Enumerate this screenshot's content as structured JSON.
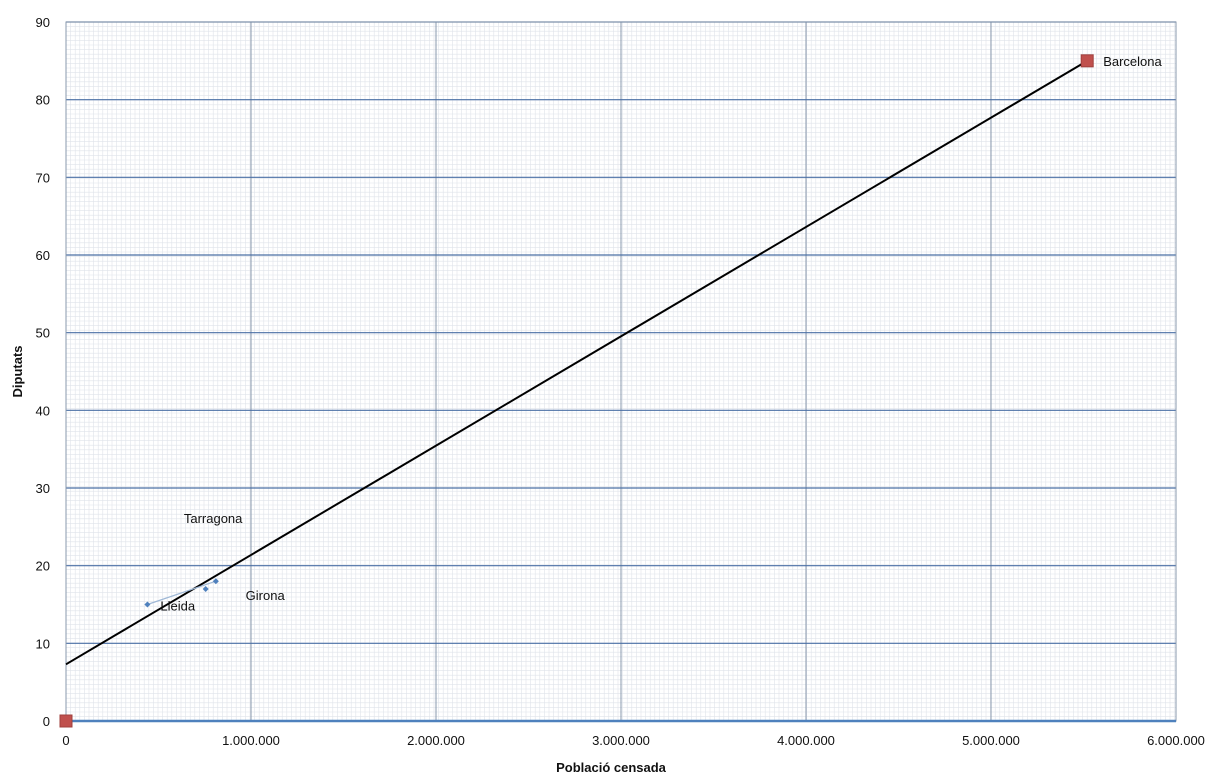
{
  "chart_data": {
    "type": "scatter",
    "title": "",
    "xlabel": "Població censada",
    "ylabel": "Diputats",
    "xlim": [
      0,
      6000000
    ],
    "ylim": [
      0,
      90
    ],
    "x_ticks": [
      0,
      1000000,
      2000000,
      3000000,
      4000000,
      5000000,
      6000000
    ],
    "x_tick_labels": [
      "0",
      "1.000.000",
      "2.000.000",
      "3.000.000",
      "4.000.000",
      "5.000.000",
      "6.000.000"
    ],
    "y_ticks": [
      0,
      10,
      20,
      30,
      40,
      50,
      60,
      70,
      80,
      90
    ],
    "y_tick_labels": [
      "0",
      "10",
      "20",
      "30",
      "40",
      "50",
      "60",
      "70",
      "80",
      "90"
    ],
    "grid": true,
    "legend": "none",
    "series": [
      {
        "marker": "diamond",
        "color": "#4f81bd",
        "points": [
          {
            "x": 440000,
            "y": 15
          },
          {
            "x": 755000,
            "y": 17
          },
          {
            "x": 810000,
            "y": 18
          }
        ]
      },
      {
        "marker": "square",
        "color": "#c0504d",
        "points": [
          {
            "x": 0,
            "y": 0
          },
          {
            "x": 5520000,
            "y": 85
          }
        ]
      }
    ],
    "annotations": [
      {
        "text": "Barcelona",
        "x": 5520000,
        "y": 85
      },
      {
        "text": "Tarragona",
        "x": 810000,
        "y": 18
      },
      {
        "text": "Girona",
        "x": 755000,
        "y": 17
      },
      {
        "text": "Lleida",
        "x": 440000,
        "y": 15
      }
    ],
    "trendlines": [
      {
        "type": "linear",
        "color": "#000000",
        "from": [
          0,
          7.3
        ],
        "to": [
          5520000,
          85
        ]
      },
      {
        "type": "linear",
        "color": "#9fb8d6",
        "from": [
          440000,
          15
        ],
        "to": [
          810000,
          18
        ]
      }
    ],
    "colors": {
      "grid_major": "#4a6fa5",
      "grid_minor": "#dfe3ea",
      "x_axis_line": "#4f81bd"
    }
  }
}
